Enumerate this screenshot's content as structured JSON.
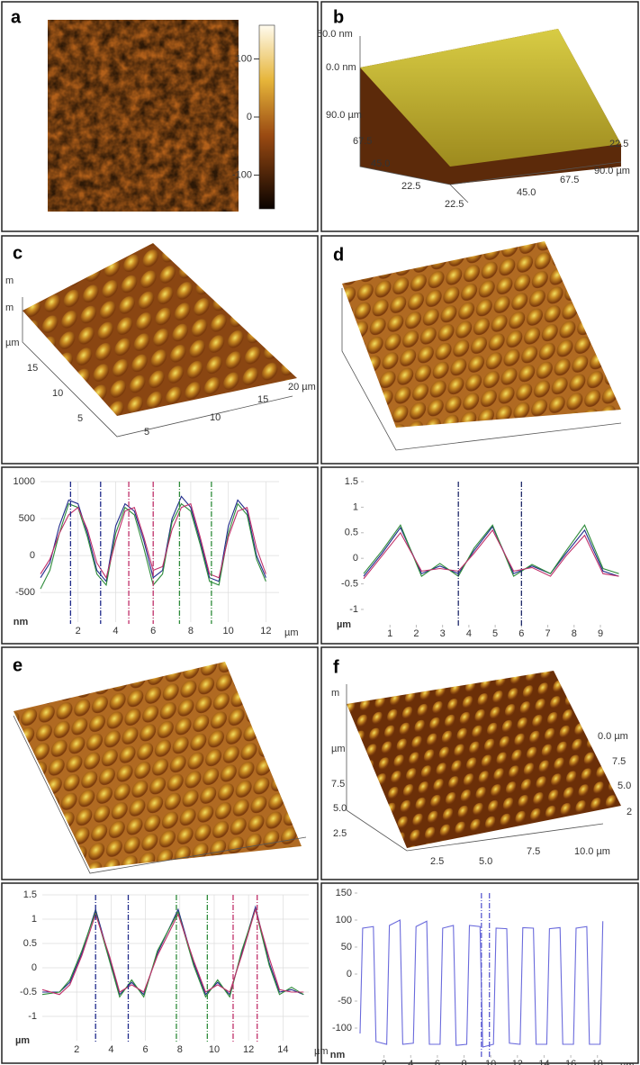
{
  "panels": [
    {
      "label": "a",
      "colorbar_ticks": [
        100,
        0,
        -100
      ],
      "colorbar_lim": [
        -158,
        158
      ]
    },
    {
      "label": "b",
      "axis_labels": [
        "50.0 nm",
        "0.0 nm",
        "90.0 µm",
        "67.5",
        "45.0",
        "22.5",
        "22.5",
        "45.0",
        "67.5",
        "90.0 µm",
        "22.5"
      ]
    },
    {
      "label": "c",
      "axis_labels": [
        "m",
        "m",
        "µm",
        "15",
        "10",
        "5",
        "5",
        "10",
        "15",
        "20 µm"
      ]
    },
    {
      "label": "d"
    },
    {
      "label": "e"
    },
    {
      "label": "f",
      "axis_labels": [
        "m",
        "µm",
        "7.5",
        "5.0",
        "2.5",
        "2.5",
        "5.0",
        "7.5",
        "10.0 µm",
        "0.0 µm",
        "7.5",
        "5.0",
        "2"
      ]
    }
  ],
  "chart_data": [
    {
      "type": "line",
      "y_unit": "nm",
      "x_unit": "µm",
      "xlim": [
        0,
        12.7
      ],
      "ylim": [
        -900,
        1000
      ],
      "xticks": [
        2,
        4,
        6,
        8,
        10,
        12
      ],
      "yticks": [
        -500,
        0,
        500,
        1000
      ],
      "grid": true,
      "x": [
        0,
        0.5,
        1,
        1.5,
        2,
        2.5,
        3,
        3.5,
        4,
        4.5,
        5,
        5.5,
        6,
        6.5,
        7,
        7.5,
        8,
        8.5,
        9,
        9.5,
        10,
        10.5,
        11,
        11.5,
        12
      ],
      "series": [
        {
          "color": "#1f2a8a",
          "values": [
            -300,
            -100,
            400,
            750,
            700,
            300,
            -200,
            -350,
            400,
            700,
            600,
            200,
            -300,
            -200,
            500,
            800,
            650,
            200,
            -300,
            -350,
            400,
            750,
            600,
            0,
            -300
          ]
        },
        {
          "color": "#2e8b3a",
          "values": [
            -450,
            -200,
            300,
            700,
            650,
            250,
            -250,
            -400,
            300,
            650,
            550,
            100,
            -400,
            -250,
            450,
            700,
            600,
            150,
            -350,
            -400,
            300,
            700,
            550,
            -50,
            -350
          ]
        },
        {
          "color": "#c0306a",
          "values": [
            -250,
            -50,
            300,
            550,
            650,
            350,
            -100,
            -300,
            200,
            600,
            650,
            250,
            -200,
            -150,
            350,
            650,
            700,
            250,
            -250,
            -300,
            250,
            600,
            650,
            100,
            -250
          ]
        }
      ],
      "markers": [
        {
          "x": 1.6,
          "color": "#1f2a8a"
        },
        {
          "x": 3.2,
          "color": "#1f2a8a"
        },
        {
          "x": 4.7,
          "color": "#c0306a"
        },
        {
          "x": 6.0,
          "color": "#c0306a"
        },
        {
          "x": 7.4,
          "color": "#2e8b3a"
        },
        {
          "x": 9.1,
          "color": "#2e8b3a"
        }
      ]
    },
    {
      "type": "line",
      "y_unit": "µm",
      "x_unit": "µm",
      "xlim": [
        0,
        10.3
      ],
      "ylim": [
        -1.3,
        1.5
      ],
      "xticks": [
        1,
        2,
        3,
        4,
        5,
        6,
        7,
        8,
        9
      ],
      "yticks": [
        -1,
        -0.5,
        0,
        0.5,
        1,
        1.5
      ],
      "grid": false,
      "x": [
        0,
        0.7,
        1.4,
        2.2,
        2.9,
        3.6,
        4.2,
        4.9,
        5.7,
        6.4,
        7.1,
        7.7,
        8.4,
        9.1,
        9.7
      ],
      "series": [
        {
          "color": "#1f2a8a",
          "values": [
            -0.35,
            0.1,
            0.6,
            -0.3,
            -0.15,
            -0.3,
            0.15,
            0.62,
            -0.3,
            -0.15,
            -0.3,
            0.1,
            0.55,
            -0.25,
            -0.35
          ]
        },
        {
          "color": "#2e8b3a",
          "values": [
            -0.3,
            0.15,
            0.65,
            -0.35,
            -0.1,
            -0.35,
            0.2,
            0.65,
            -0.35,
            -0.12,
            -0.3,
            0.15,
            0.65,
            -0.2,
            -0.3
          ]
        },
        {
          "color": "#c0306a",
          "values": [
            -0.4,
            0.05,
            0.5,
            -0.25,
            -0.2,
            -0.25,
            0.1,
            0.55,
            -0.25,
            -0.18,
            -0.35,
            0.05,
            0.45,
            -0.3,
            -0.35
          ]
        }
      ],
      "markers": [
        {
          "x": 3.6,
          "color": "#1f2a6a"
        },
        {
          "x": 6.0,
          "color": "#1f2a6a"
        }
      ]
    },
    {
      "type": "line",
      "y_unit": "µm",
      "x_unit": "µm",
      "xlim": [
        0,
        15.5
      ],
      "ylim": [
        -1.5,
        1.5
      ],
      "xticks": [
        2,
        4,
        6,
        8,
        10,
        12,
        14
      ],
      "yticks": [
        -1,
        -0.5,
        0,
        0.5,
        1,
        1.5
      ],
      "grid": true,
      "x": [
        0,
        1,
        1.6,
        2.3,
        3.1,
        3.9,
        4.5,
        5.2,
        5.9,
        6.7,
        7.9,
        8.8,
        9.5,
        10.2,
        10.9,
        11.6,
        12.4,
        13.2,
        13.8,
        14.5,
        15.2
      ],
      "series": [
        {
          "color": "#1f2a8a",
          "values": [
            -0.5,
            -0.5,
            -0.3,
            0.3,
            1.2,
            0.2,
            -0.55,
            -0.3,
            -0.55,
            0.3,
            1.2,
            0.1,
            -0.55,
            -0.3,
            -0.55,
            0.3,
            1.25,
            0.1,
            -0.5,
            -0.45,
            -0.55
          ]
        },
        {
          "color": "#2e8b3a",
          "values": [
            -0.55,
            -0.5,
            -0.25,
            0.35,
            1.15,
            0.15,
            -0.6,
            -0.25,
            -0.6,
            0.35,
            1.15,
            0.05,
            -0.6,
            -0.25,
            -0.6,
            0.35,
            1.2,
            0.05,
            -0.55,
            -0.4,
            -0.55
          ]
        },
        {
          "color": "#c0306a",
          "values": [
            -0.45,
            -0.55,
            -0.35,
            0.25,
            1.1,
            0.25,
            -0.5,
            -0.35,
            -0.5,
            0.25,
            1.1,
            0.15,
            -0.5,
            -0.35,
            -0.5,
            0.25,
            1.2,
            0.2,
            -0.45,
            -0.5,
            -0.5
          ]
        }
      ],
      "markers": [
        {
          "x": 3.1,
          "color": "#1f2a8a"
        },
        {
          "x": 5.0,
          "color": "#1f2a8a"
        },
        {
          "x": 7.8,
          "color": "#2e8b3a"
        },
        {
          "x": 9.6,
          "color": "#2e8b3a"
        },
        {
          "x": 11.1,
          "color": "#c0306a"
        },
        {
          "x": 12.5,
          "color": "#c0306a"
        }
      ]
    },
    {
      "type": "line",
      "y_unit": "nm",
      "x_unit": "µm",
      "xlim": [
        0,
        19.3
      ],
      "ylim": [
        -150,
        150
      ],
      "xticks": [
        2,
        4,
        6,
        8,
        10,
        12,
        14,
        16,
        18
      ],
      "yticks": [
        -100,
        -50,
        0,
        50,
        100,
        150
      ],
      "grid": false,
      "x": [
        0.2,
        0.4,
        1.2,
        1.4,
        2.2,
        2.4,
        3.2,
        3.4,
        4.2,
        4.4,
        5.2,
        5.4,
        6.2,
        6.4,
        7.2,
        7.4,
        8.2,
        8.4,
        9.2,
        9.4,
        10.2,
        10.4,
        11.2,
        11.4,
        12.2,
        12.4,
        13.2,
        13.4,
        14.2,
        14.4,
        15.2,
        15.4,
        16.2,
        16.4,
        17.2,
        17.4,
        18.2,
        18.4
      ],
      "series": [
        {
          "color": "#6a6adc",
          "values": [
            -110,
            85,
            88,
            -125,
            -130,
            90,
            100,
            -130,
            -128,
            88,
            98,
            -130,
            -130,
            85,
            90,
            -132,
            -130,
            90,
            88,
            -135,
            -130,
            85,
            84,
            -128,
            -130,
            86,
            85,
            -130,
            -130,
            84,
            86,
            -130,
            -130,
            85,
            88,
            -130,
            -130,
            98
          ]
        }
      ],
      "markers": [
        {
          "x": 9.3,
          "color": "#5a5ad0"
        },
        {
          "x": 9.9,
          "color": "#5a5ad0"
        }
      ]
    }
  ]
}
